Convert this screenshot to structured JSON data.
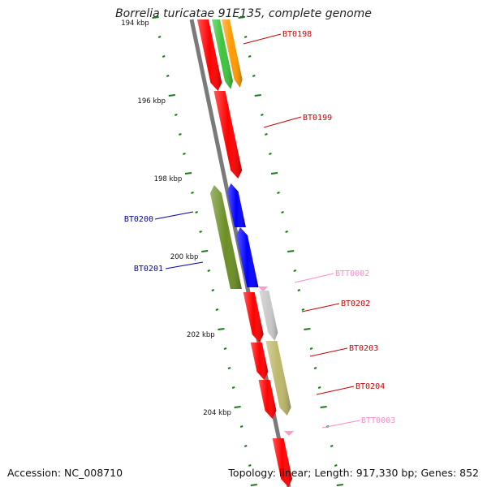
{
  "title": "Borrelia turicatae 91E135, complete genome",
  "footer": {
    "accession": "Accession: NC_008710",
    "summary": "Topology: linear; Length: 917,330 bp; Genes: 852"
  },
  "colors": {
    "backbone": "#7a7a7a",
    "tick": "#1a7a1a",
    "red": "#ff0000",
    "blue": "#0000ff",
    "olive": "#6b8e23",
    "green": "#3cc43c",
    "orange": "#ff9900",
    "grey": "#c8c8c8",
    "khaki": "#bdb76b",
    "pink": "#ff99cc",
    "label_red": "#cc0000",
    "label_blue": "#0000aa",
    "label_pink": "#ff88cc"
  },
  "scale_labels": [
    {
      "text": "194 kbp",
      "bp": 194000
    },
    {
      "text": "196 kbp",
      "bp": 196000
    },
    {
      "text": "198 kbp",
      "bp": 198000
    },
    {
      "text": "200 kbp",
      "bp": 200000
    },
    {
      "text": "202 kbp",
      "bp": 202000
    },
    {
      "text": "204 kbp",
      "bp": 204000
    }
  ],
  "genes": [
    {
      "name": "BT0198",
      "strand": "+",
      "color": "orange",
      "label_color": "label_red"
    },
    {
      "name": "BT0199",
      "strand": "+",
      "color": "red",
      "label_color": "label_red"
    },
    {
      "name": "BT0200",
      "strand": "-",
      "color": "olive",
      "label_color": "label_blue"
    },
    {
      "name": "BT0201",
      "strand": "-",
      "color": "blue",
      "label_color": "label_blue"
    },
    {
      "name": "BTT0002",
      "strand": "+",
      "color": "pink",
      "label_color": "label_pink"
    },
    {
      "name": "BT0202",
      "strand": "+",
      "color": "red",
      "label_color": "label_red"
    },
    {
      "name": "BT0203",
      "strand": "+",
      "color": "khaki",
      "label_color": "label_red"
    },
    {
      "name": "BT0204",
      "strand": "+",
      "color": "red",
      "label_color": "label_red"
    },
    {
      "name": "BTT0003",
      "strand": "+",
      "color": "pink",
      "label_color": "label_pink"
    }
  ]
}
